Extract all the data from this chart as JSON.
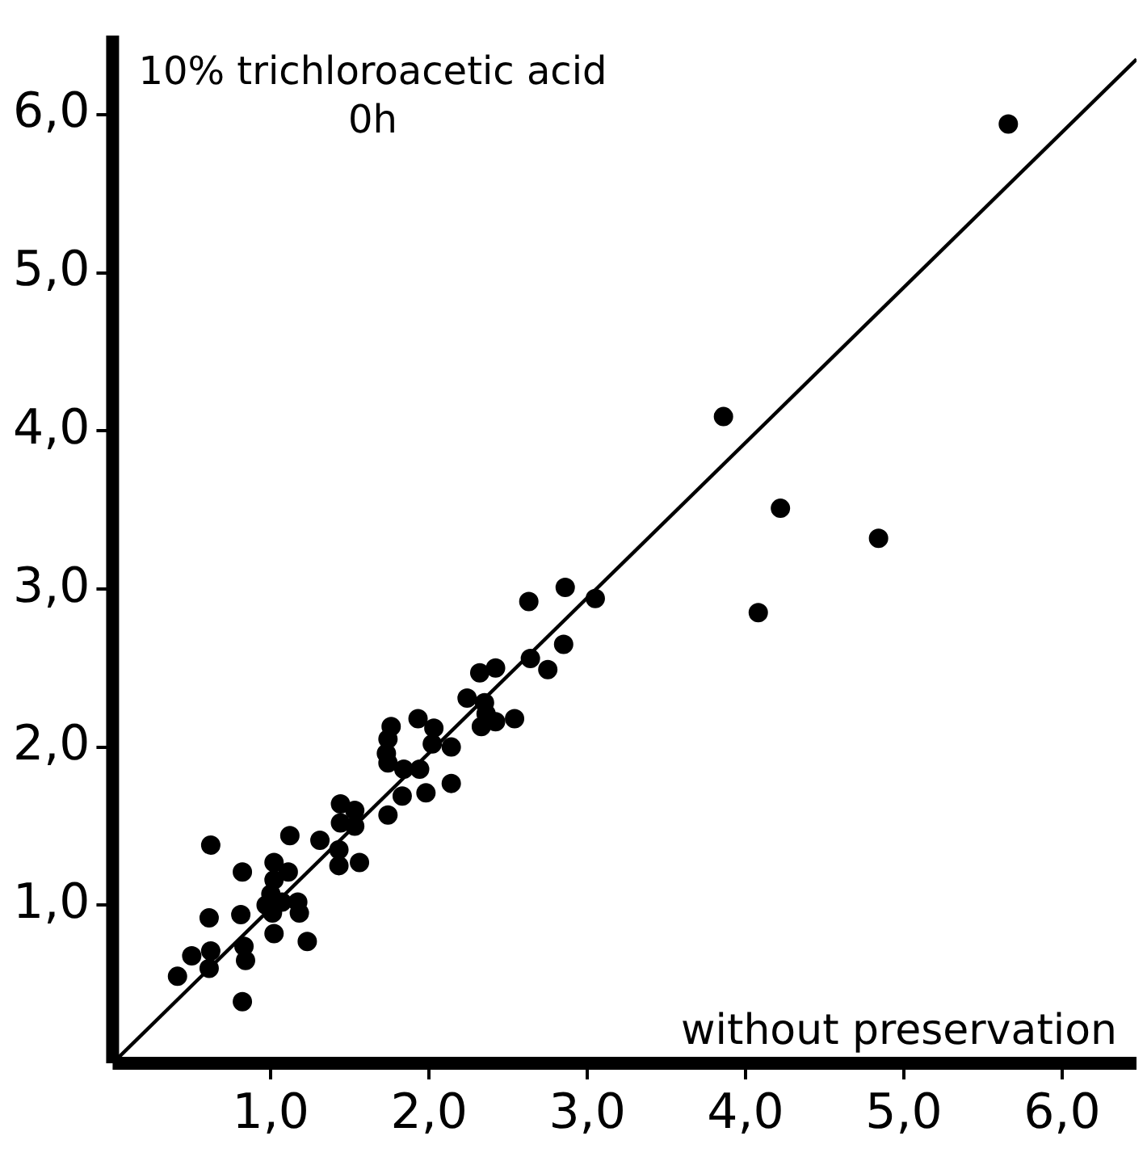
{
  "chart_data": {
    "type": "scatter",
    "ylabel": "10% trichloroacetic acid\n0h",
    "xlabel": "without preservation",
    "xlim": [
      0,
      6.47
    ],
    "ylim": [
      0,
      6.5
    ],
    "xticks": [
      {
        "value": 1,
        "label": "1,0"
      },
      {
        "value": 2,
        "label": "2,0"
      },
      {
        "value": 3,
        "label": "3,0"
      },
      {
        "value": 4,
        "label": "4,0"
      },
      {
        "value": 5,
        "label": "5,0"
      },
      {
        "value": 6,
        "label": "6,0"
      }
    ],
    "yticks": [
      {
        "value": 1,
        "label": "1,0"
      },
      {
        "value": 2,
        "label": "2,0"
      },
      {
        "value": 3,
        "label": "3,0"
      },
      {
        "value": 4,
        "label": "4,0"
      },
      {
        "value": 5,
        "label": "5,0"
      },
      {
        "value": 6,
        "label": "6,0"
      }
    ],
    "grid": false,
    "legend": false,
    "series": [
      {
        "marker": "circle",
        "color": "#000000",
        "x": [
          5.66,
          3.86,
          4.22,
          4.84,
          4.08,
          3.05,
          2.86,
          2.63,
          2.85,
          2.64,
          2.75,
          2.42,
          2.32,
          2.24,
          2.35,
          2.36,
          2.33,
          2.42,
          2.54,
          1.93,
          2.03,
          2.02,
          2.14,
          1.76,
          1.74,
          1.73,
          1.74,
          1.84,
          1.94,
          1.83,
          1.98,
          2.14,
          1.74,
          1.44,
          1.53,
          1.44,
          1.53,
          1.56,
          1.31,
          1.43,
          1.43,
          1.12,
          1.02,
          1.11,
          1.02,
          1.0,
          1.07,
          0.97,
          1.01,
          1.17,
          1.18,
          1.02,
          1.23,
          0.82,
          0.81,
          0.83,
          0.84,
          0.82,
          0.62,
          0.61,
          0.62,
          0.61,
          0.5,
          0.41
        ],
        "values": [
          5.94,
          4.09,
          3.51,
          3.32,
          2.85,
          2.94,
          3.01,
          2.92,
          2.65,
          2.56,
          2.49,
          2.5,
          2.47,
          2.31,
          2.28,
          2.21,
          2.13,
          2.16,
          2.18,
          2.18,
          2.12,
          2.02,
          2.0,
          2.13,
          2.05,
          1.96,
          1.9,
          1.86,
          1.86,
          1.69,
          1.71,
          1.77,
          1.57,
          1.64,
          1.6,
          1.52,
          1.5,
          1.27,
          1.41,
          1.35,
          1.25,
          1.44,
          1.27,
          1.21,
          1.16,
          1.07,
          1.02,
          1.0,
          0.95,
          1.02,
          0.95,
          0.82,
          0.77,
          1.21,
          0.94,
          0.74,
          0.65,
          0.39,
          1.38,
          0.92,
          0.71,
          0.6,
          0.68,
          0.55
        ]
      },
      {
        "type": "line",
        "marker": "none",
        "color": "#000000",
        "x": [
          0,
          6.47
        ],
        "values": [
          0,
          6.35
        ]
      }
    ]
  }
}
